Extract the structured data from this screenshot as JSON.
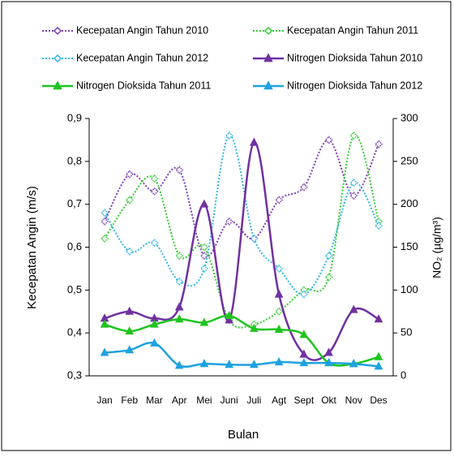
{
  "chart_data": {
    "type": "line",
    "x_label": "Bulan",
    "y_label": "Kecepatan Angin (m/s)",
    "y2_label": "NO₂ (µg/m³)",
    "categories": [
      "Jan",
      "Feb",
      "Mar",
      "Apr",
      "Mei",
      "Juni",
      "Juli",
      "Agt",
      "Sept",
      "Okt",
      "Nov",
      "Des"
    ],
    "ylim": [
      0.3,
      0.9
    ],
    "yticks": [
      {
        "value": 0.3,
        "label": "0,3"
      },
      {
        "value": 0.4,
        "label": "0,4"
      },
      {
        "value": 0.5,
        "label": "0,5"
      },
      {
        "value": 0.6,
        "label": "0,6"
      },
      {
        "value": 0.7,
        "label": "0,7"
      },
      {
        "value": 0.8,
        "label": "0,8"
      },
      {
        "value": 0.9,
        "label": "0,9"
      }
    ],
    "y2lim": [
      0,
      300
    ],
    "y2ticks": [
      0,
      50,
      100,
      150,
      200,
      250,
      300
    ],
    "series": [
      {
        "name": "Kecepatan Angin Tahun 2010",
        "color": "#7b3fb5",
        "style": "dotted",
        "marker": "diamond",
        "values": [
          0.66,
          0.77,
          0.73,
          0.78,
          0.58,
          0.66,
          0.62,
          0.71,
          0.74,
          0.85,
          0.72,
          0.84
        ]
      },
      {
        "name": "Kecepatan Angin Tahun 2011",
        "color": "#33cc33",
        "style": "dotted",
        "marker": "diamond",
        "values": [
          0.62,
          0.71,
          0.76,
          0.58,
          0.6,
          0.43,
          0.42,
          0.45,
          0.5,
          0.53,
          0.86,
          0.66
        ]
      },
      {
        "name": "Kecepatan Angin Tahun 2012",
        "color": "#33b5e5",
        "style": "dotted",
        "marker": "diamond",
        "values": [
          0.68,
          0.59,
          0.61,
          0.52,
          0.55,
          0.86,
          0.62,
          0.55,
          0.49,
          0.58,
          0.75,
          0.65
        ]
      },
      {
        "name": "Nitrogen Dioksida Tahun 2010",
        "color": "#7030a0",
        "style": "solid",
        "marker": "triangle",
        "axis": "y2",
        "values": [
          67,
          75,
          67,
          80,
          200,
          65,
          272,
          95,
          25,
          27,
          77,
          66
        ]
      },
      {
        "name": "Nitrogen Dioksida Tahun 2011",
        "color": "#1fc41f",
        "style": "solid",
        "marker": "triangle",
        "axis": "y2",
        "values": [
          60,
          52,
          60,
          66,
          62,
          70,
          55,
          54,
          48,
          15,
          14,
          22
        ]
      },
      {
        "name": "Nitrogen Dioksida Tahun 2012",
        "color": "#1ea1e0",
        "style": "solid",
        "marker": "triangle",
        "axis": "y2",
        "values": [
          27,
          30,
          38,
          12,
          14,
          13,
          13,
          16,
          15,
          15,
          14,
          11
        ]
      }
    ]
  }
}
